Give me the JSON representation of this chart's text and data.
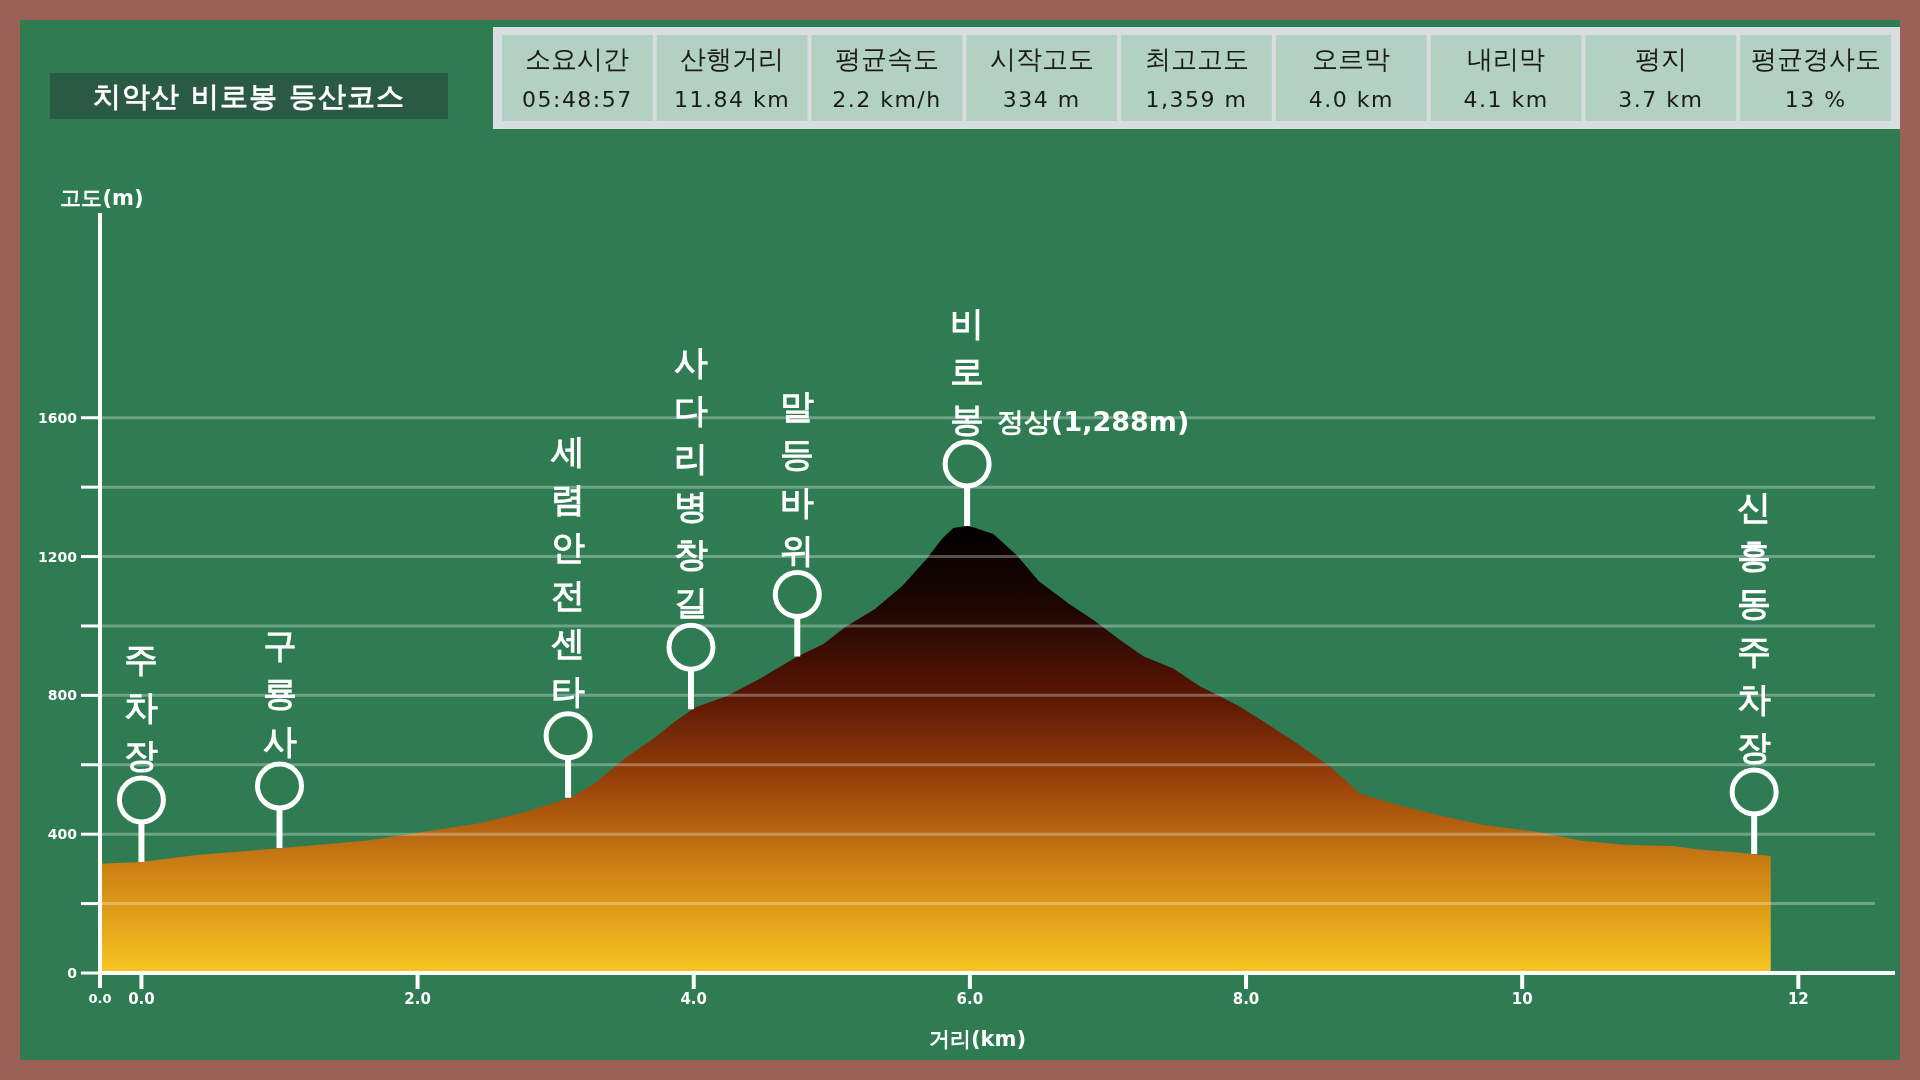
{
  "chart_data": [
    {
      "type": "other",
      "title": "치악산 비로봉 등산코스",
      "categories": [
        "소요시간",
        "산행거리",
        "평균속도",
        "시작고도",
        "최고고도",
        "오르막",
        "내리막",
        "평지",
        "평균경사도"
      ],
      "annotations": [
        "05:48:57",
        "11.84 km",
        "2.2 km/h",
        "334 m",
        "1,359 m",
        "4.0 km",
        "4.1 km",
        "3.7 km",
        "13 %"
      ]
    },
    {
      "type": "area",
      "xlabel": "거리(km)",
      "ylabel": "고도(m)",
      "x": [
        -0.3,
        0.0,
        0.4,
        1.02,
        1.64,
        2.05,
        2.46,
        2.79,
        3.12,
        3.29,
        3.49,
        3.7,
        3.86,
        4.01,
        4.24,
        4.48,
        4.75,
        4.94,
        5.1,
        5.31,
        5.51,
        5.68,
        5.8,
        5.88,
        5.98,
        6.03,
        6.17,
        6.34,
        6.5,
        6.72,
        6.9,
        7.09,
        7.26,
        7.47,
        7.66,
        7.94,
        8.13,
        8.36,
        8.6,
        8.83,
        9.07,
        9.4,
        9.73,
        10.1,
        10.43,
        10.76,
        11.09,
        11.28,
        11.56,
        11.8
      ],
      "values": [
        315,
        320,
        340,
        360,
        382,
        407,
        432,
        465,
        507,
        548,
        615,
        673,
        723,
        765,
        798,
        848,
        912,
        948,
        998,
        1048,
        1115,
        1190,
        1252,
        1282,
        1288,
        1284,
        1265,
        1204,
        1129,
        1063,
        1016,
        959,
        912,
        878,
        828,
        771,
        724,
        664,
        598,
        516,
        488,
        454,
        426,
        407,
        381,
        369,
        366,
        356,
        347,
        337
      ],
      "xlim": [
        -0.3,
        12.7
      ],
      "xticks": [
        {
          "value": 0,
          "label": "0.0"
        },
        {
          "value": 2,
          "label": "2.0"
        },
        {
          "value": 4,
          "label": "4.0"
        },
        {
          "value": 6,
          "label": "6.0"
        },
        {
          "value": 8,
          "label": "8.0"
        },
        10,
        12
      ],
      "ylim": [
        0,
        2190
      ],
      "yticks": [
        0,
        {
          "value": 200,
          "label": null
        },
        400,
        {
          "value": 600,
          "label": null
        },
        800,
        {
          "value": 1000,
          "label": null
        },
        1200,
        {
          "value": 1400,
          "label": null
        },
        1600
      ],
      "grid": "y",
      "annotations": [
        "0.0",
        {
          "text": "주차장",
          "x": 0.0,
          "y": 320
        },
        {
          "text": "구룡사",
          "x": 1.0,
          "y": 360
        },
        {
          "text": "세렴안전센타",
          "x": 3.09,
          "y": 505
        },
        {
          "text": "사다리병창길",
          "x": 3.98,
          "y": 760
        },
        {
          "text": "말등바위",
          "x": 4.75,
          "y": 912
        },
        {
          "text": "비로봉",
          "x": 5.98,
          "y": 1288
        },
        "정상(1,288m)",
        {
          "text": "신흥동주차장",
          "x": 11.68,
          "y": 343
        }
      ]
    }
  ]
}
